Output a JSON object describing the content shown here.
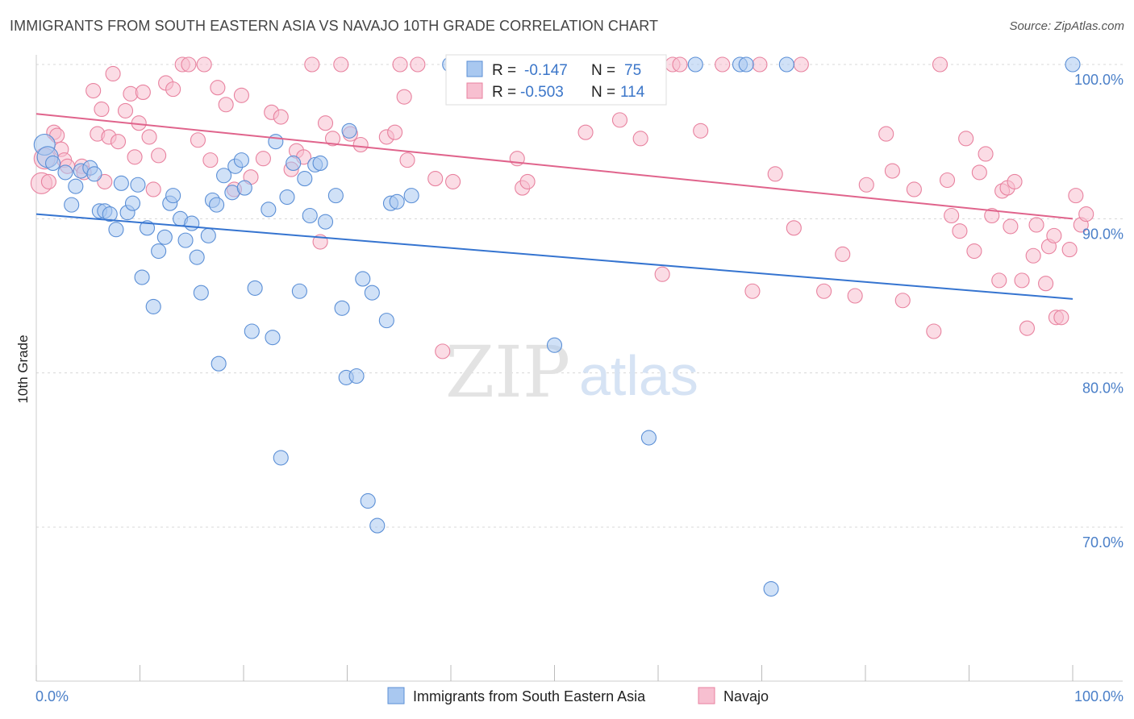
{
  "title": "IMMIGRANTS FROM SOUTH EASTERN ASIA VS NAVAJO 10TH GRADE CORRELATION CHART",
  "source": "Source: ZipAtlas.com",
  "watermark": {
    "zip": "ZIP",
    "atlas": "atlas"
  },
  "colors": {
    "blue_fill": "#a9c8f0",
    "blue_stroke": "#5b8fd6",
    "blue_line": "#3574d0",
    "pink_fill": "#f7bfd0",
    "pink_stroke": "#e8829f",
    "pink_line": "#e0648c",
    "axis_text": "#4a7fc8",
    "grid": "#d8d8d8"
  },
  "stats": {
    "r_label": "R =",
    "n_label": "N =",
    "blue": {
      "r": "-0.147",
      "n": "75"
    },
    "pink": {
      "r": "-0.503",
      "n": "114"
    }
  },
  "legend": {
    "blue": "Immigrants from South Eastern Asia",
    "pink": "Navajo"
  },
  "chart_data": {
    "type": "scatter",
    "title": "IMMIGRANTS FROM SOUTH EASTERN ASIA VS NAVAJO 10TH GRADE CORRELATION CHART",
    "xlabel": "",
    "ylabel": "10th Grade",
    "xlim": [
      0,
      100
    ],
    "ylim": [
      61,
      102
    ],
    "x_tick_labels": [
      "0.0%",
      "100.0%"
    ],
    "y_tick_labels": [
      "100.0%",
      "90.0%",
      "80.0%",
      "70.0%"
    ],
    "y_ticks": [
      100,
      90,
      80,
      70
    ],
    "grid": "horizontal dashed",
    "legend_position": "bottom",
    "series": [
      {
        "name": "Immigrants from South Eastern Asia",
        "color": "#a9c8f0",
        "trend": {
          "x": [
            0,
            100
          ],
          "y": [
            90.3,
            84.8
          ]
        },
        "points": [
          [
            0.8,
            94.8
          ],
          [
            1.1,
            94.0
          ],
          [
            1.6,
            93.6
          ],
          [
            2.8,
            93.0
          ],
          [
            3.4,
            90.9
          ],
          [
            3.8,
            92.1
          ],
          [
            4.3,
            93.1
          ],
          [
            5.2,
            93.3
          ],
          [
            5.6,
            92.9
          ],
          [
            6.1,
            90.5
          ],
          [
            6.6,
            90.5
          ],
          [
            7.1,
            90.3
          ],
          [
            7.7,
            89.3
          ],
          [
            8.2,
            92.3
          ],
          [
            8.8,
            90.4
          ],
          [
            9.3,
            91.0
          ],
          [
            9.8,
            92.2
          ],
          [
            10.2,
            86.2
          ],
          [
            10.7,
            89.4
          ],
          [
            11.3,
            84.3
          ],
          [
            11.8,
            87.9
          ],
          [
            12.4,
            88.8
          ],
          [
            12.9,
            91.0
          ],
          [
            13.2,
            91.5
          ],
          [
            13.9,
            90.0
          ],
          [
            14.4,
            88.6
          ],
          [
            15.0,
            89.7
          ],
          [
            15.5,
            87.5
          ],
          [
            15.9,
            85.2
          ],
          [
            16.6,
            88.9
          ],
          [
            17.0,
            91.2
          ],
          [
            17.4,
            90.9
          ],
          [
            17.6,
            80.6
          ],
          [
            18.1,
            92.8
          ],
          [
            18.9,
            91.7
          ],
          [
            19.2,
            93.4
          ],
          [
            19.8,
            93.8
          ],
          [
            20.1,
            92.0
          ],
          [
            20.8,
            82.7
          ],
          [
            21.1,
            85.5
          ],
          [
            22.4,
            90.6
          ],
          [
            22.8,
            82.3
          ],
          [
            23.1,
            95.0
          ],
          [
            23.6,
            74.5
          ],
          [
            24.2,
            91.4
          ],
          [
            24.8,
            93.6
          ],
          [
            25.4,
            85.3
          ],
          [
            25.9,
            92.6
          ],
          [
            26.4,
            90.2
          ],
          [
            26.9,
            93.5
          ],
          [
            27.4,
            93.6
          ],
          [
            27.9,
            89.8
          ],
          [
            28.9,
            91.5
          ],
          [
            29.5,
            84.2
          ],
          [
            29.9,
            79.7
          ],
          [
            30.2,
            95.7
          ],
          [
            30.9,
            79.8
          ],
          [
            31.5,
            86.1
          ],
          [
            32.0,
            71.7
          ],
          [
            32.4,
            85.2
          ],
          [
            32.9,
            70.1
          ],
          [
            33.8,
            83.4
          ],
          [
            34.2,
            91.0
          ],
          [
            34.8,
            91.1
          ],
          [
            36.2,
            91.5
          ],
          [
            39.9,
            100.0
          ],
          [
            47.4,
            100.0
          ],
          [
            50.0,
            81.8
          ],
          [
            59.1,
            75.8
          ],
          [
            63.6,
            100.0
          ],
          [
            67.9,
            100.0
          ],
          [
            68.5,
            100.0
          ],
          [
            70.9,
            66.0
          ],
          [
            72.4,
            100.0
          ],
          [
            100.0,
            100.0
          ]
        ]
      },
      {
        "name": "Navajo",
        "color": "#f7bfd0",
        "trend": {
          "x": [
            0,
            100
          ],
          "y": [
            96.8,
            90.0
          ]
        },
        "points": [
          [
            0.5,
            92.3
          ],
          [
            0.8,
            93.9
          ],
          [
            1.2,
            92.4
          ],
          [
            1.7,
            95.6
          ],
          [
            2.0,
            95.4
          ],
          [
            2.4,
            94.5
          ],
          [
            2.7,
            93.8
          ],
          [
            3.0,
            93.4
          ],
          [
            4.4,
            93.4
          ],
          [
            4.6,
            93.0
          ],
          [
            5.5,
            98.3
          ],
          [
            5.9,
            95.5
          ],
          [
            6.3,
            97.1
          ],
          [
            6.6,
            92.4
          ],
          [
            7.0,
            95.3
          ],
          [
            7.4,
            99.4
          ],
          [
            7.9,
            95.0
          ],
          [
            8.6,
            97.0
          ],
          [
            9.1,
            98.1
          ],
          [
            9.5,
            94.0
          ],
          [
            9.9,
            96.2
          ],
          [
            10.3,
            98.2
          ],
          [
            10.9,
            95.3
          ],
          [
            11.3,
            91.9
          ],
          [
            11.8,
            94.1
          ],
          [
            12.5,
            98.8
          ],
          [
            13.2,
            98.4
          ],
          [
            14.1,
            100.0
          ],
          [
            14.7,
            100.0
          ],
          [
            15.6,
            95.1
          ],
          [
            16.2,
            100.0
          ],
          [
            16.8,
            93.8
          ],
          [
            17.5,
            98.5
          ],
          [
            18.3,
            97.4
          ],
          [
            19.1,
            91.9
          ],
          [
            19.8,
            98.0
          ],
          [
            20.7,
            92.7
          ],
          [
            21.9,
            93.9
          ],
          [
            22.7,
            96.9
          ],
          [
            23.6,
            96.6
          ],
          [
            24.6,
            93.2
          ],
          [
            25.1,
            94.4
          ],
          [
            25.8,
            94.0
          ],
          [
            26.6,
            100.0
          ],
          [
            27.4,
            88.5
          ],
          [
            27.9,
            96.2
          ],
          [
            28.6,
            95.2
          ],
          [
            29.4,
            100.0
          ],
          [
            30.3,
            95.5
          ],
          [
            31.3,
            94.8
          ],
          [
            33.8,
            95.3
          ],
          [
            34.6,
            95.6
          ],
          [
            35.1,
            100.0
          ],
          [
            35.5,
            97.9
          ],
          [
            35.8,
            93.8
          ],
          [
            36.8,
            100.0
          ],
          [
            38.5,
            92.6
          ],
          [
            39.2,
            81.4
          ],
          [
            40.2,
            92.4
          ],
          [
            44.8,
            100.0
          ],
          [
            46.4,
            93.9
          ],
          [
            46.9,
            92.0
          ],
          [
            47.4,
            92.4
          ],
          [
            52.4,
            100.0
          ],
          [
            53.0,
            95.6
          ],
          [
            55.0,
            100.0
          ],
          [
            56.3,
            96.4
          ],
          [
            58.3,
            95.2
          ],
          [
            60.4,
            86.4
          ],
          [
            61.4,
            100.0
          ],
          [
            62.1,
            100.0
          ],
          [
            64.1,
            95.7
          ],
          [
            66.2,
            100.0
          ],
          [
            69.1,
            85.3
          ],
          [
            69.8,
            100.0
          ],
          [
            71.3,
            92.9
          ],
          [
            73.1,
            89.4
          ],
          [
            73.8,
            100.0
          ],
          [
            76.0,
            85.3
          ],
          [
            77.8,
            87.7
          ],
          [
            79.0,
            85.0
          ],
          [
            80.1,
            92.2
          ],
          [
            82.0,
            95.5
          ],
          [
            82.6,
            93.1
          ],
          [
            83.6,
            84.7
          ],
          [
            84.7,
            91.9
          ],
          [
            86.6,
            82.7
          ],
          [
            87.2,
            100.0
          ],
          [
            87.9,
            92.5
          ],
          [
            88.3,
            90.2
          ],
          [
            89.1,
            89.2
          ],
          [
            89.7,
            95.2
          ],
          [
            90.5,
            87.9
          ],
          [
            91.0,
            93.0
          ],
          [
            91.6,
            94.2
          ],
          [
            92.2,
            90.2
          ],
          [
            92.9,
            86.0
          ],
          [
            93.2,
            91.8
          ],
          [
            93.7,
            92.0
          ],
          [
            94.0,
            89.5
          ],
          [
            94.4,
            92.4
          ],
          [
            95.1,
            86.0
          ],
          [
            95.6,
            82.9
          ],
          [
            96.2,
            87.6
          ],
          [
            96.5,
            89.6
          ],
          [
            97.4,
            85.8
          ],
          [
            97.7,
            88.2
          ],
          [
            98.2,
            88.9
          ],
          [
            98.4,
            83.6
          ],
          [
            98.9,
            83.6
          ],
          [
            99.7,
            88.0
          ],
          [
            100.3,
            91.5
          ],
          [
            100.8,
            89.6
          ],
          [
            101.3,
            90.3
          ]
        ]
      }
    ]
  }
}
